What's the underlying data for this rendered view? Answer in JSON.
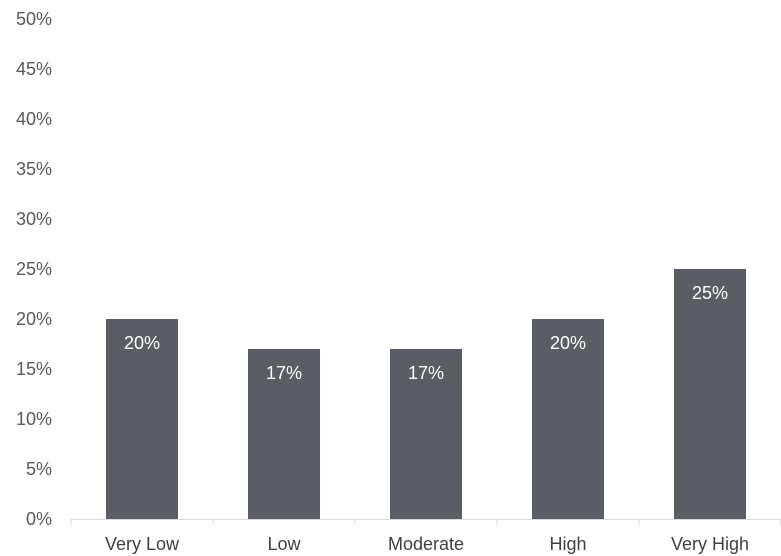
{
  "chart_data": {
    "type": "bar",
    "categories": [
      "Very Low",
      "Low",
      "Moderate",
      "High",
      "Very High"
    ],
    "values": [
      20,
      17,
      17,
      20,
      25
    ],
    "data_labels": [
      "20%",
      "17%",
      "17%",
      "20%",
      "25%"
    ],
    "y_ticks": [
      "0%",
      "5%",
      "10%",
      "15%",
      "20%",
      "25%",
      "30%",
      "35%",
      "40%",
      "45%",
      "50%"
    ],
    "ylim": [
      0,
      50
    ],
    "title": "",
    "xlabel": "",
    "ylabel": "",
    "grid": false,
    "legend": "none",
    "bar_color": "#5a5d66",
    "axis_color": "#d9d9d9"
  }
}
